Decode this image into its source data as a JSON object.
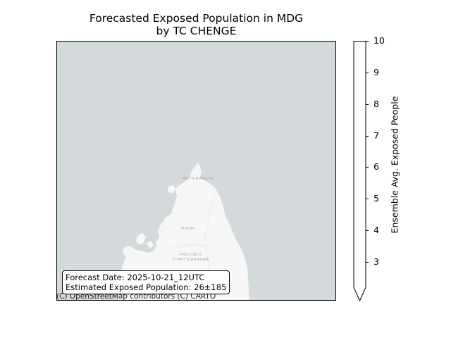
{
  "title": "Forecasted Exposed Population in MDG\nby TC CHENGE",
  "map": {
    "ocean_color": "#d4dadc",
    "land_color": "#f7f7f7",
    "place_labels": {
      "city": "ANTSIRANANA",
      "region": "DIANA",
      "province": "PROVINCE\nD'ANTSIRANANA"
    },
    "attribution": "(C) OpenStreetMap contributors (C) CARTO"
  },
  "info_box": {
    "forecast_date": "Forecast Date: 2025-10-21_12UTC",
    "exposed_population": "Estimated Exposed Population: 26±185"
  },
  "colorbar": {
    "label": "Ensemble Avg. Exposed People",
    "ticks": [
      "3",
      "4",
      "5",
      "6",
      "7",
      "8",
      "9",
      "10"
    ],
    "min": 2.2,
    "max": 10,
    "extend": "min",
    "color": "#ffffff"
  }
}
